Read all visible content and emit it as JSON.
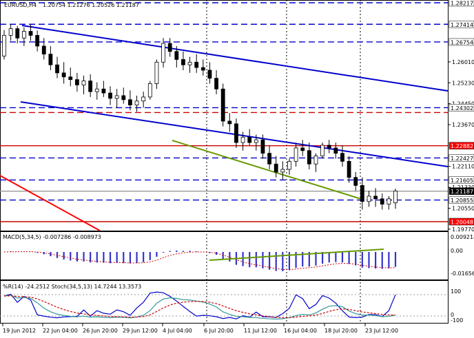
{
  "window": {
    "symbol_label": "EURUSD,H4",
    "ohlc_label": "1.20754 1.21276 1.20526 1.21187"
  },
  "price_panel": {
    "right_axis_ticks": [
      "1.26010",
      "1.25230",
      "1.24450",
      "1.23670",
      "1.22110",
      "1.21330",
      "1.20550",
      "1.19770"
    ],
    "levels": [
      {
        "value": "1.28217",
        "style": "dash",
        "color": "#0000cc",
        "box_bg": "#ffffff",
        "box_fg": "#000000"
      },
      {
        "value": "1.27414",
        "style": "dash",
        "color": "#0000cc",
        "box_bg": "#ffffff",
        "box_fg": "#000000"
      },
      {
        "value": "1.26754",
        "style": "dash",
        "color": "#0000cc",
        "box_bg": "#ffffff",
        "box_fg": "#000000"
      },
      {
        "value": "1.24302",
        "style": "dash",
        "color": "#0000cc",
        "box_bg": "#ffffff",
        "box_fg": "#000000"
      },
      {
        "value": "1.22882",
        "style": "solid",
        "color": "#cc0000",
        "box_bg": "#ff0000",
        "box_fg": "#ffffff"
      },
      {
        "value": "1.22427",
        "style": "dash",
        "color": "#0000cc",
        "box_bg": "#ffffff",
        "box_fg": "#000000"
      },
      {
        "value": "1.21605",
        "style": "dash",
        "color": "#0000cc",
        "box_bg": "#ffffff",
        "box_fg": "#000000"
      },
      {
        "value": "1.21187",
        "style": "solid",
        "color": "#999999",
        "box_bg": "#000000",
        "box_fg": "#ffffff"
      },
      {
        "value": "1.20855",
        "style": "dash",
        "color": "#0000cc",
        "box_bg": "#ffffff",
        "box_fg": "#000000"
      },
      {
        "value": "1.20048",
        "style": "solid",
        "color": "#cc0000",
        "box_bg": "#ff0000",
        "box_fg": "#ffffff"
      }
    ]
  },
  "macd_panel": {
    "label": "MACD(5,34,5) -0.007286 -0.008973",
    "ticks": [
      "0.009214",
      "0.00",
      "-0.01656"
    ]
  },
  "stoch_panel": {
    "label": "%R(14) -24.2512  Stoch(34,5,13) 14.7244 13.3573",
    "ticks": [
      "100",
      "0",
      "-100"
    ]
  },
  "time_axis": [
    "19 Jun 2012",
    "22 Jun 04:00",
    "26 Jun 20:00",
    "29 Jun 12:00",
    "4 Jul 04:00",
    "6 Jul 20:00",
    "11 Jul 12:00",
    "16 Jul 04:00",
    "18 Jul 20:00",
    "23 Jul 12:00"
  ],
  "colors": {
    "candle_up": "#000000",
    "candle_down": "#000000",
    "channel": "#0000cc",
    "support": "#669900",
    "red_line": "#ff0000",
    "macd_hist": "#3333cc",
    "macd_signal": "#cc0000",
    "wpr": "#0000cc",
    "stoch_main": "#339999",
    "stoch_signal": "#cc0000"
  },
  "chart_data": {
    "type": "candlestick",
    "ohlc": [
      [
        1.2623,
        1.272,
        1.261,
        1.27
      ],
      [
        1.27,
        1.2741,
        1.268,
        1.2725
      ],
      [
        1.2725,
        1.2735,
        1.267,
        1.269
      ],
      [
        1.269,
        1.273,
        1.266,
        1.2715
      ],
      [
        1.2715,
        1.274,
        1.268,
        1.27
      ],
      [
        1.27,
        1.2718,
        1.264,
        1.266
      ],
      [
        1.266,
        1.269,
        1.261,
        1.263
      ],
      [
        1.263,
        1.266,
        1.257,
        1.259
      ],
      [
        1.259,
        1.262,
        1.254,
        1.256
      ],
      [
        1.256,
        1.26,
        1.252,
        1.2545
      ],
      [
        1.2545,
        1.258,
        1.251,
        1.2535
      ],
      [
        1.2535,
        1.256,
        1.249,
        1.2515
      ],
      [
        1.2515,
        1.255,
        1.248,
        1.253
      ],
      [
        1.253,
        1.2555,
        1.247,
        1.249
      ],
      [
        1.249,
        1.2525,
        1.246,
        1.25
      ],
      [
        1.25,
        1.253,
        1.247,
        1.2485
      ],
      [
        1.2485,
        1.251,
        1.244,
        1.2465
      ],
      [
        1.2465,
        1.25,
        1.243,
        1.2475
      ],
      [
        1.2475,
        1.2505,
        1.2445,
        1.246
      ],
      [
        1.246,
        1.2495,
        1.242,
        1.244
      ],
      [
        1.244,
        1.2475,
        1.2415,
        1.2455
      ],
      [
        1.2455,
        1.249,
        1.243,
        1.247
      ],
      [
        1.247,
        1.253,
        1.246,
        1.252
      ],
      [
        1.252,
        1.261,
        1.25,
        1.26
      ],
      [
        1.26,
        1.269,
        1.258,
        1.267
      ],
      [
        1.267,
        1.269,
        1.262,
        1.264
      ],
      [
        1.264,
        1.266,
        1.258,
        1.261
      ],
      [
        1.261,
        1.264,
        1.257,
        1.259
      ],
      [
        1.259,
        1.262,
        1.256,
        1.26
      ],
      [
        1.26,
        1.263,
        1.256,
        1.258
      ],
      [
        1.258,
        1.261,
        1.255,
        1.257
      ],
      [
        1.257,
        1.26,
        1.252,
        1.254
      ],
      [
        1.254,
        1.257,
        1.248,
        1.25
      ],
      [
        1.25,
        1.252,
        1.236,
        1.238
      ],
      [
        1.238,
        1.241,
        1.234,
        1.237
      ],
      [
        1.237,
        1.239,
        1.228,
        1.23
      ],
      [
        1.23,
        1.234,
        1.227,
        1.232
      ],
      [
        1.232,
        1.235,
        1.229,
        1.23
      ],
      [
        1.23,
        1.233,
        1.227,
        1.231
      ],
      [
        1.231,
        1.233,
        1.224,
        1.226
      ],
      [
        1.226,
        1.229,
        1.22,
        1.222
      ],
      [
        1.222,
        1.225,
        1.217,
        1.219
      ],
      [
        1.219,
        1.223,
        1.216,
        1.22
      ],
      [
        1.22,
        1.224,
        1.218,
        1.223
      ],
      [
        1.223,
        1.23,
        1.221,
        1.228
      ],
      [
        1.228,
        1.231,
        1.225,
        1.227
      ],
      [
        1.227,
        1.23,
        1.22,
        1.222
      ],
      [
        1.222,
        1.226,
        1.219,
        1.225
      ],
      [
        1.225,
        1.23,
        1.224,
        1.229
      ],
      [
        1.229,
        1.231,
        1.226,
        1.228
      ],
      [
        1.228,
        1.23,
        1.224,
        1.226
      ],
      [
        1.226,
        1.229,
        1.221,
        1.223
      ],
      [
        1.223,
        1.225,
        1.215,
        1.217
      ],
      [
        1.217,
        1.219,
        1.212,
        1.214
      ],
      [
        1.214,
        1.217,
        1.205,
        1.208
      ],
      [
        1.208,
        1.212,
        1.206,
        1.21
      ],
      [
        1.21,
        1.213,
        1.206,
        1.209
      ],
      [
        1.209,
        1.211,
        1.205,
        1.207
      ],
      [
        1.207,
        1.21,
        1.205,
        1.209
      ],
      [
        1.2075,
        1.2128,
        1.2053,
        1.2119
      ]
    ]
  }
}
